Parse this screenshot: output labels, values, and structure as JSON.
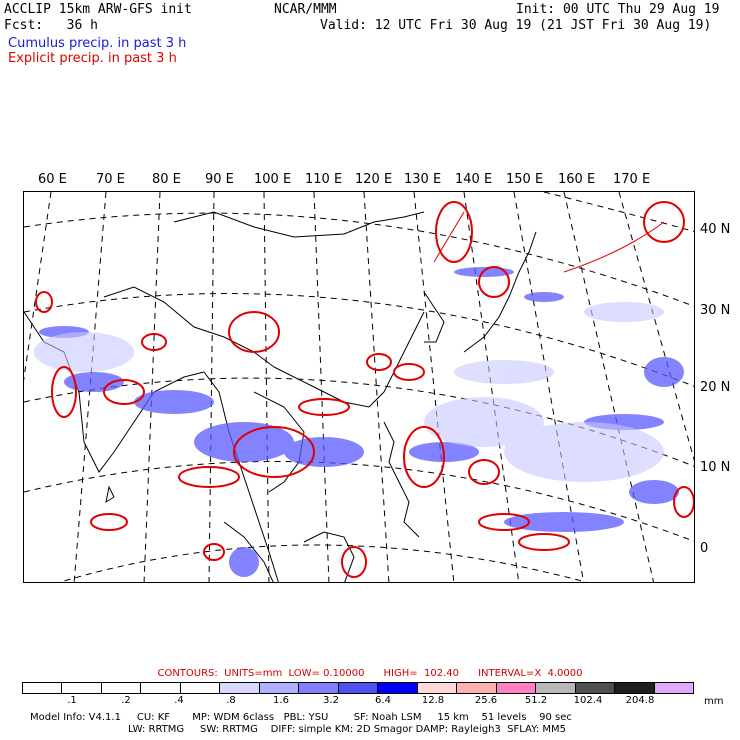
{
  "header": {
    "left_line1": "ACCLIP 15km ARW-GFS init",
    "left_line2": "Fcst:   36 h",
    "center": "NCAR/MMM",
    "right_line1": "Init: 00 UTC Thu 29 Aug 19",
    "right_line2": "Valid: 12 UTC Fri 30 Aug 19 (21 JST Fri 30 Aug 19)",
    "legend_cumulus": "Cumulus precip. in past 3 h",
    "legend_explicit": "Explicit precip. in past 3 h"
  },
  "longitudes": [
    "60 E",
    "70 E",
    "80 E",
    "90 E",
    "100 E",
    "110 E",
    "120 E",
    "130 E",
    "140 E",
    "150 E",
    "160 E",
    "170 E"
  ],
  "latitudes": [
    "40 N",
    "30 N",
    "20 N",
    "10 N",
    "0"
  ],
  "contour_info": {
    "label": "CONTOURS:  UNITS=mm  LOW= 0.10000",
    "high": "HIGH=  102.40",
    "interval": "INTERVAL=X  4.0000"
  },
  "colorbar": {
    "colors": [
      "#ffffff",
      "#ffffff",
      "#ffffff",
      "#ffffff",
      "#ffffff",
      "#d8d8ff",
      "#b0b0ff",
      "#8080ff",
      "#5050f0",
      "#0000ff",
      "#ffd8d8",
      "#ffb0b0",
      "#ff80c0",
      "#b8b8b8",
      "#505050",
      "#202020",
      "#e0a8ff"
    ],
    "ticks": [
      ".1",
      ".2",
      ".4",
      ".8",
      "1.6",
      "3.2",
      "6.4",
      "12.8",
      "25.6",
      "51.2",
      "102.4",
      "204.8"
    ],
    "units": "mm"
  },
  "model_info": {
    "line1": "Model Info: V4.1.1     CU: KF       MP: WDM 6class   PBL: YSU        SF: Noah LSM     15 km    51 levels    90 sec",
    "line2": "LW: RRTMG     SW: RRTMG    DIFF: simple KM: 2D Smagor DAMP: Rayleigh3  SFLAY: MM5"
  }
}
